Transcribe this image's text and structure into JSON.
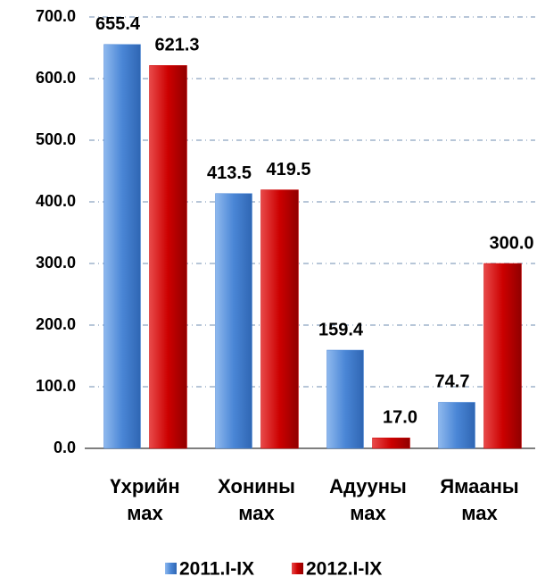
{
  "chart_data": {
    "type": "bar",
    "categories": [
      "Үхрийн мах",
      "Хонины мах",
      "Адууны мах",
      "Ямааны мах"
    ],
    "series": [
      {
        "name": "2011.I-IX",
        "color": "#4a86d6",
        "values": [
          655.4,
          413.5,
          159.4,
          74.7
        ],
        "value_labels": [
          "655.4",
          "413.5",
          "159.4",
          "74.7"
        ]
      },
      {
        "name": "2012.I-IX",
        "color": "#cc0000",
        "values": [
          621.3,
          419.5,
          17,
          300
        ],
        "value_labels": [
          "621.3",
          "419.5",
          "17.0",
          "300.0"
        ]
      }
    ],
    "ylim": [
      0,
      700
    ],
    "yticks": [
      {
        "value": 0,
        "label": "0.0"
      },
      {
        "value": 100,
        "label": "100.0"
      },
      {
        "value": 200,
        "label": "200.0"
      },
      {
        "value": 300,
        "label": "300.0"
      },
      {
        "value": 400,
        "label": "400.0"
      },
      {
        "value": 500,
        "label": "500.0"
      },
      {
        "value": 600,
        "label": "600.0"
      },
      {
        "value": 700,
        "label": "700.0"
      }
    ],
    "grid": true,
    "legend": "bottom"
  }
}
